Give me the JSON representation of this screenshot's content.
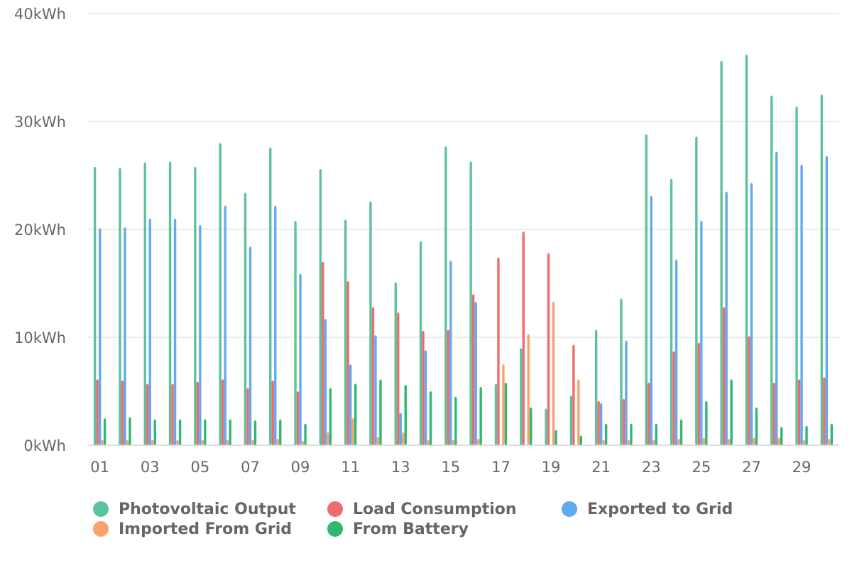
{
  "chart_data": {
    "type": "bar",
    "title": "",
    "xlabel": "",
    "ylabel": "",
    "ylim": [
      0,
      40
    ],
    "y_unit": "kWh",
    "y_ticks": [
      "0kWh",
      "10kWh",
      "20kWh",
      "30kWh",
      "40kWh"
    ],
    "grid": true,
    "legend_position": "bottom",
    "categories": [
      "01",
      "02",
      "03",
      "04",
      "05",
      "06",
      "07",
      "08",
      "09",
      "10",
      "11",
      "12",
      "13",
      "14",
      "15",
      "16",
      "17",
      "18",
      "19",
      "20",
      "21",
      "22",
      "23",
      "24",
      "25",
      "26",
      "27",
      "28",
      "29",
      "30"
    ],
    "x_tick_labels": [
      "01",
      "03",
      "05",
      "07",
      "09",
      "11",
      "13",
      "15",
      "17",
      "19",
      "21",
      "23",
      "25",
      "27",
      "29"
    ],
    "series": [
      {
        "name": "Photovoltaic Output",
        "color": "#5cc29c",
        "values": [
          25.8,
          25.7,
          26.2,
          26.3,
          25.8,
          28.0,
          23.4,
          27.6,
          20.8,
          25.6,
          20.9,
          22.6,
          15.1,
          18.9,
          27.7,
          26.3,
          5.7,
          9.0,
          3.4,
          4.6,
          10.7,
          13.6,
          28.8,
          24.7,
          28.6,
          35.6,
          36.2,
          32.4,
          31.4,
          32.5
        ]
      },
      {
        "name": "Load Consumption",
        "color": "#f06b6b",
        "values": [
          6.1,
          6.0,
          5.7,
          5.7,
          5.9,
          6.1,
          5.3,
          6.0,
          5.0,
          17.0,
          15.2,
          12.8,
          12.3,
          10.6,
          10.7,
          14.0,
          17.4,
          19.8,
          17.8,
          9.3,
          4.1,
          4.3,
          5.8,
          8.7,
          9.5,
          12.8,
          10.1,
          5.8,
          6.1,
          6.3
        ]
      },
      {
        "name": "Exported to Grid",
        "color": "#60aaf2",
        "values": [
          20.1,
          20.2,
          21.0,
          21.0,
          20.4,
          22.2,
          18.4,
          22.2,
          15.9,
          11.7,
          7.5,
          10.2,
          3.0,
          8.8,
          17.1,
          13.3,
          0.0,
          0.0,
          0.0,
          0.0,
          3.9,
          9.7,
          23.1,
          17.2,
          20.8,
          23.5,
          24.3,
          27.2,
          26.0,
          26.8
        ]
      },
      {
        "name": "Imported From Grid",
        "color": "#f9a26c",
        "values": [
          0.5,
          0.5,
          0.5,
          0.5,
          0.5,
          0.5,
          0.5,
          0.6,
          0.4,
          1.2,
          2.5,
          0.8,
          1.2,
          0.5,
          0.5,
          0.6,
          7.5,
          10.3,
          13.3,
          6.1,
          0.5,
          0.5,
          0.5,
          0.6,
          0.7,
          0.6,
          0.7,
          0.7,
          0.5,
          0.6
        ]
      },
      {
        "name": "From Battery",
        "color": "#2eb872",
        "values": [
          2.5,
          2.6,
          2.4,
          2.4,
          2.4,
          2.4,
          2.3,
          2.4,
          2.0,
          5.3,
          5.7,
          6.1,
          5.6,
          5.0,
          4.5,
          5.4,
          5.8,
          3.5,
          1.4,
          0.9,
          2.0,
          2.0,
          2.0,
          2.4,
          4.1,
          6.1,
          3.5,
          1.7,
          1.8,
          2.0
        ]
      }
    ]
  },
  "legend": [
    {
      "label": "Photovoltaic Output",
      "color": "#5cc29c"
    },
    {
      "label": "Load Consumption",
      "color": "#f06b6b"
    },
    {
      "label": "Exported to Grid",
      "color": "#60aaf2"
    },
    {
      "label": "Imported From Grid",
      "color": "#f9a26c"
    },
    {
      "label": "From Battery",
      "color": "#2eb872"
    }
  ]
}
